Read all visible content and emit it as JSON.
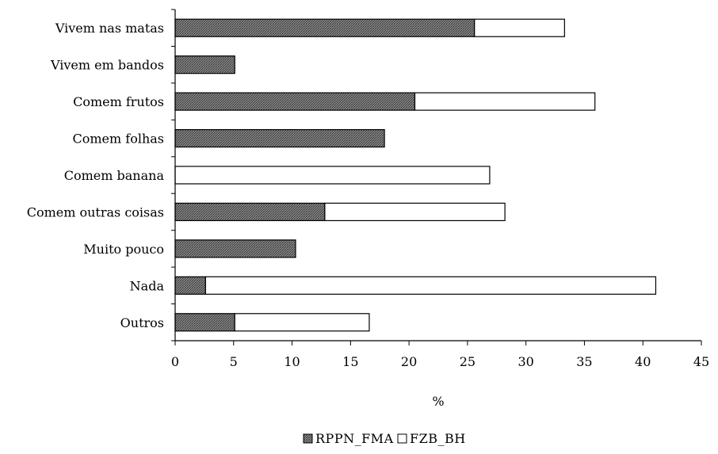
{
  "chart_data": {
    "type": "bar",
    "orientation": "horizontal",
    "stacked": true,
    "title": "",
    "xlabel": "%",
    "ylabel": "",
    "xlim": [
      0,
      45
    ],
    "x_ticks": [
      0,
      5,
      10,
      15,
      20,
      25,
      30,
      35,
      40,
      45
    ],
    "grid": false,
    "legend_position": "bottom",
    "categories": [
      "Vivem nas matas",
      "Vivem em bandos",
      "Comem frutos",
      "Comem folhas",
      "Comem banana",
      "Comem outras coisas",
      "Muito pouco",
      "Nada",
      "Outros"
    ],
    "series": [
      {
        "name": "RPPN_FMA",
        "fill": "hatched",
        "color": "#555555",
        "values": [
          25.6,
          5.1,
          20.5,
          17.9,
          0,
          12.8,
          10.3,
          2.6,
          5.1
        ]
      },
      {
        "name": "FZB_BH",
        "fill": "white",
        "color": "#ffffff",
        "values": [
          7.7,
          0,
          15.4,
          0,
          26.9,
          15.4,
          0,
          38.5,
          11.5
        ]
      }
    ]
  }
}
